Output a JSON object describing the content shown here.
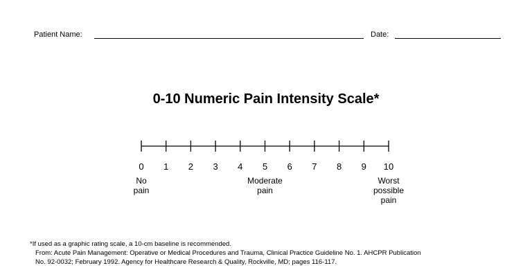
{
  "header": {
    "patient_name_label": "Patient Name:",
    "date_label": "Date:"
  },
  "title": "0-10 Numeric Pain Intensity Scale*",
  "scale": {
    "min": 0,
    "max": 10,
    "tick_labels": [
      "0",
      "1",
      "2",
      "3",
      "4",
      "5",
      "6",
      "7",
      "8",
      "9",
      "10"
    ],
    "anchors": [
      {
        "value": 0,
        "label": "No\npain"
      },
      {
        "value": 5,
        "label": "Moderate\npain"
      },
      {
        "value": 10,
        "label": "Worst\npossible\npain"
      }
    ]
  },
  "footnote": {
    "line1": "*If used as a graphic rating scale, a 10-cm baseline is recommended.",
    "line2": "From: Acute Pain Management: Operative or Medical Procedures and Trauma, Clinical Practice Guideline No. 1. AHCPR Publication",
    "line3": "No. 92-0032; February 1992.  Agency for Healthcare Research & Quality, Rockville, MD; pages 116-117."
  }
}
